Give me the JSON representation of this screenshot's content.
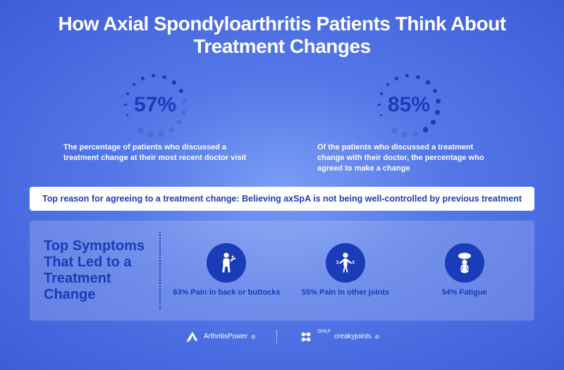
{
  "title": "How Axial Spondyloarthritis Patients Think About Treatment Changes",
  "stats": [
    {
      "pct": "57%",
      "fill": 0.57,
      "desc": "The percentage of patients who discussed a treatment change at their most recent doctor visit"
    },
    {
      "pct": "85%",
      "fill": 0.85,
      "desc": "Of the patients who discussed a treatment change with their doctor, the percentage who agreed to make a change"
    }
  ],
  "banner": "Top reason for agreeing to a treatment change: Believing axSpA is not being well-controlled by previous treatment",
  "symptoms_title": "Top Symptoms That Led to a Treatment Change",
  "symptoms": [
    {
      "label": "63% Pain in back or buttocks"
    },
    {
      "label": "55% Pain in other joints"
    },
    {
      "label": "54% Fatigue"
    }
  ],
  "footer": [
    {
      "name": "ArthritisPower"
    },
    {
      "name": "creakyjoints",
      "prefix": "GHLF"
    }
  ],
  "colors": {
    "primary": "#1a3cb8",
    "bg_center": "#7a9cf5",
    "bg_outer": "#3d5dd8",
    "panel": "rgba(255,255,255,0.18)",
    "white": "#ffffff"
  },
  "ring": {
    "dot_count": 16,
    "dot_size_min": 3,
    "dot_size_max": 9
  }
}
